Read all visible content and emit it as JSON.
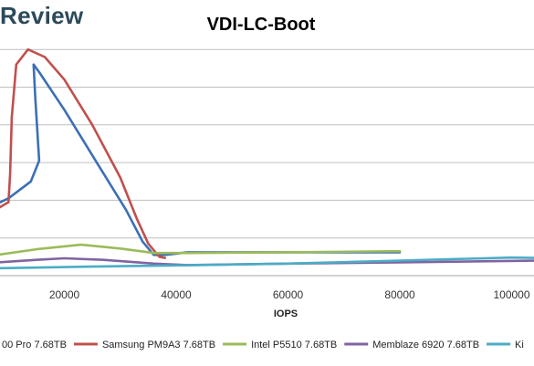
{
  "brand": "Review",
  "chart_data": {
    "type": "line",
    "title": "VDI-LC-Boot",
    "xlabel": "IOPS",
    "ylabel": "",
    "xlim": [
      0,
      105000
    ],
    "x_ticks": [
      "20000",
      "40000",
      "60000",
      "80000",
      "100000"
    ],
    "grid": true,
    "legend_position": "bottom",
    "series": [
      {
        "name": "00 Pro 7.68TB",
        "color": "#3c6fb5",
        "points": [
          [
            5000,
            1.7
          ],
          [
            10000,
            2.05
          ],
          [
            14000,
            2.5
          ],
          [
            15500,
            3.05
          ],
          [
            14800,
            4.7
          ],
          [
            14500,
            5.6
          ],
          [
            15500,
            5.4
          ],
          [
            20000,
            4.4
          ],
          [
            26000,
            2.95
          ],
          [
            31000,
            1.75
          ],
          [
            34000,
            0.9
          ],
          [
            36000,
            0.55
          ],
          [
            38000,
            0.55
          ],
          [
            42000,
            0.62
          ],
          [
            60000,
            0.62
          ],
          [
            80000,
            0.62
          ]
        ]
      },
      {
        "name": "Samsung PM9A3 7.68TB",
        "color": "#c0504d",
        "points": [
          [
            6000,
            1.6
          ],
          [
            10000,
            1.95
          ],
          [
            10300,
            2.7
          ],
          [
            10600,
            4.2
          ],
          [
            11400,
            5.6
          ],
          [
            13500,
            6.0
          ],
          [
            16500,
            5.8
          ],
          [
            20000,
            5.2
          ],
          [
            25000,
            4.0
          ],
          [
            30000,
            2.6
          ],
          [
            33000,
            1.5
          ],
          [
            35000,
            0.85
          ],
          [
            37000,
            0.5
          ],
          [
            38000,
            0.47
          ]
        ]
      },
      {
        "name": "Intel P5510 7.68TB",
        "color": "#9bbb59",
        "points": [
          [
            0,
            0.5
          ],
          [
            8000,
            0.55
          ],
          [
            15000,
            0.7
          ],
          [
            23000,
            0.82
          ],
          [
            30000,
            0.72
          ],
          [
            36000,
            0.6
          ],
          [
            42000,
            0.6
          ],
          [
            60000,
            0.62
          ],
          [
            80000,
            0.65
          ]
        ]
      },
      {
        "name": "Memblaze 6920 7.68TB",
        "color": "#8064a2",
        "points": [
          [
            0,
            0.28
          ],
          [
            8000,
            0.35
          ],
          [
            15000,
            0.42
          ],
          [
            20000,
            0.46
          ],
          [
            27000,
            0.42
          ],
          [
            36000,
            0.32
          ],
          [
            42000,
            0.28
          ],
          [
            60000,
            0.32
          ],
          [
            80000,
            0.35
          ],
          [
            105000,
            0.4
          ]
        ]
      },
      {
        "name": "Ki",
        "color": "#4bacc6",
        "points": [
          [
            0,
            0.18
          ],
          [
            10000,
            0.2
          ],
          [
            25000,
            0.24
          ],
          [
            40000,
            0.27
          ],
          [
            60000,
            0.32
          ],
          [
            80000,
            0.4
          ],
          [
            100000,
            0.48
          ],
          [
            105000,
            0.47
          ]
        ]
      }
    ]
  }
}
